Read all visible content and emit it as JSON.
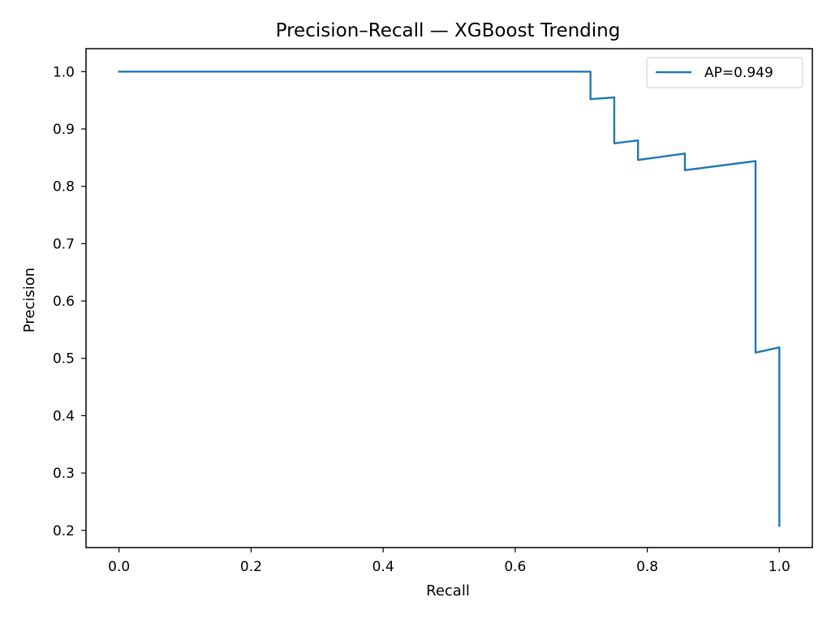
{
  "chart_data": {
    "type": "line",
    "title": "Precision–Recall — XGBoost Trending",
    "xlabel": "Recall",
    "ylabel": "Precision",
    "xlim": [
      -0.05,
      1.05
    ],
    "ylim": [
      0.17,
      1.04
    ],
    "xticks": [
      0.0,
      0.2,
      0.4,
      0.6,
      0.8,
      1.0
    ],
    "xtick_labels": [
      "0.0",
      "0.2",
      "0.4",
      "0.6",
      "0.8",
      "1.0"
    ],
    "yticks": [
      0.2,
      0.3,
      0.4,
      0.5,
      0.6,
      0.7,
      0.8,
      0.9,
      1.0
    ],
    "ytick_labels": [
      "0.2",
      "0.3",
      "0.4",
      "0.5",
      "0.6",
      "0.7",
      "0.8",
      "0.9",
      "1.0"
    ],
    "grid": false,
    "legend_position": "top-right",
    "line_color": "#1f77b4",
    "series": [
      {
        "name": "AP=0.949",
        "recall": [
          0.0,
          0.714,
          0.714,
          0.75,
          0.75,
          0.786,
          0.786,
          0.857,
          0.857,
          0.964,
          0.964,
          1.0,
          1.0
        ],
        "precision": [
          1.0,
          1.0,
          0.952,
          0.955,
          0.875,
          0.88,
          0.846,
          0.857,
          0.828,
          0.844,
          0.51,
          0.519,
          0.208
        ]
      }
    ]
  }
}
